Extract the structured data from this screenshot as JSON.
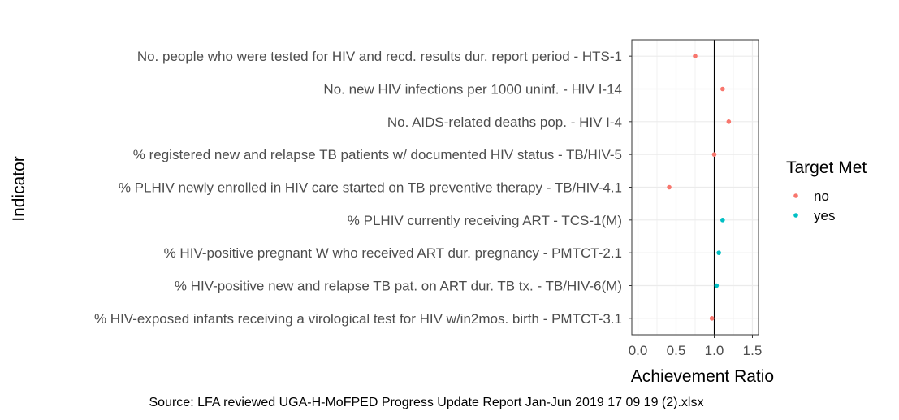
{
  "chart_data": {
    "type": "scatter",
    "xlabel": "Achievement Ratio",
    "ylabel": "Indicator",
    "xlim": [
      -0.08,
      1.58
    ],
    "xticks": [
      0.0,
      0.5,
      1.0,
      1.5
    ],
    "xtick_labels": [
      "0.0",
      "0.5",
      "1.0",
      "1.5"
    ],
    "reference_line_x": 1.0,
    "grid": true,
    "legend": {
      "title": "Target Met",
      "placement": "right",
      "entries": [
        {
          "label": "no",
          "color": "#F8766D"
        },
        {
          "label": "yes",
          "color": "#00BFC4"
        }
      ]
    },
    "caption": "Source: LFA reviewed UGA-H-MoFPED Progress Update Report Jan-Jun 2019 17 09 19 (2).xlsx",
    "points": [
      {
        "indicator": "No. people who were tested for HIV and recd. results dur. report period - HTS-1",
        "x": 0.75,
        "target_met": "no"
      },
      {
        "indicator": "No. new HIV infections per 1000 uninf. - HIV I-14",
        "x": 1.11,
        "target_met": "no"
      },
      {
        "indicator": "No. AIDS-related deaths pop. - HIV I-4",
        "x": 1.19,
        "target_met": "no"
      },
      {
        "indicator": "% registered new and relapse TB patients w/ documented HIV status - TB/HIV-5",
        "x": 1.0,
        "target_met": "no"
      },
      {
        "indicator": "% PLHIV newly enrolled in HIV care started on TB preventive therapy - TB/HIV-4.1",
        "x": 0.41,
        "target_met": "no"
      },
      {
        "indicator": "% PLHIV currently receiving ART - TCS-1(M)",
        "x": 1.11,
        "target_met": "yes"
      },
      {
        "indicator": "% HIV-positive pregnant W who received ART dur. pregnancy - PMTCT-2.1",
        "x": 1.06,
        "target_met": "yes"
      },
      {
        "indicator": "% HIV-positive new and relapse TB pat. on ART dur. TB tx. - TB/HIV-6(M)",
        "x": 1.03,
        "target_met": "yes"
      },
      {
        "indicator": "% HIV-exposed infants receiving a virological test for HIV w/in2mos. birth - PMTCT-3.1",
        "x": 0.97,
        "target_met": "no"
      }
    ]
  }
}
